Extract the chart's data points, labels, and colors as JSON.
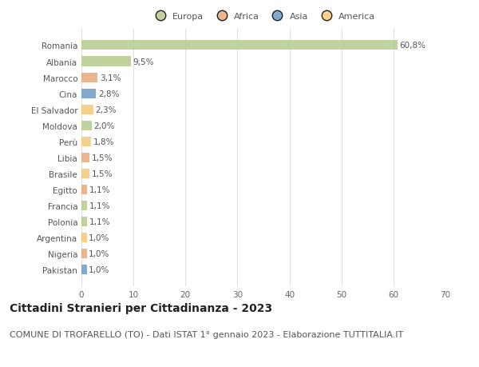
{
  "countries": [
    "Romania",
    "Albania",
    "Marocco",
    "Cina",
    "El Salvador",
    "Moldova",
    "Perù",
    "Libia",
    "Brasile",
    "Egitto",
    "Francia",
    "Polonia",
    "Argentina",
    "Nigeria",
    "Pakistan"
  ],
  "values": [
    60.8,
    9.5,
    3.1,
    2.8,
    2.3,
    2.0,
    1.8,
    1.5,
    1.5,
    1.1,
    1.1,
    1.1,
    1.0,
    1.0,
    1.0
  ],
  "labels": [
    "60,8%",
    "9,5%",
    "3,1%",
    "2,8%",
    "2,3%",
    "2,0%",
    "1,8%",
    "1,5%",
    "1,5%",
    "1,1%",
    "1,1%",
    "1,1%",
    "1,0%",
    "1,0%",
    "1,0%"
  ],
  "bar_colors": [
    "#b5cc8e",
    "#b5cc8e",
    "#e8a87c",
    "#6d9bc3",
    "#f5c97a",
    "#b5cc8e",
    "#f5c97a",
    "#e8a87c",
    "#f5c97a",
    "#e8a87c",
    "#b5cc8e",
    "#b5cc8e",
    "#f5c97a",
    "#e8a87c",
    "#6d9bc3"
  ],
  "legend_labels": [
    "Europa",
    "Africa",
    "Asia",
    "America"
  ],
  "legend_colors": [
    "#b5cc8e",
    "#e8a87c",
    "#6d9bc3",
    "#f5c97a"
  ],
  "xlim": [
    0,
    70
  ],
  "xticks": [
    0,
    10,
    20,
    30,
    40,
    50,
    60,
    70
  ],
  "title": "Cittadini Stranieri per Cittadinanza - 2023",
  "subtitle": "COMUNE DI TROFARELLO (TO) - Dati ISTAT 1° gennaio 2023 - Elaborazione TUTTITALIA.IT",
  "background_color": "#ffffff",
  "grid_color": "#e0e0e0",
  "bar_height": 0.6,
  "label_fontsize": 7.5,
  "axis_fontsize": 7.5,
  "title_fontsize": 10,
  "subtitle_fontsize": 8
}
